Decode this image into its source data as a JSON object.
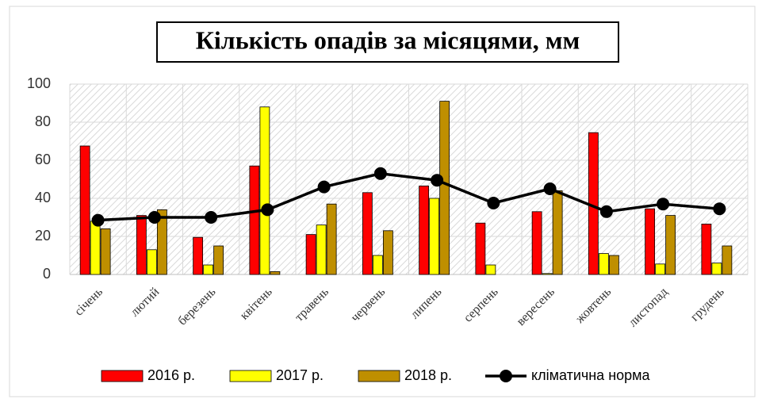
{
  "chart_data": {
    "type": "bar",
    "title": "Кількість опадів за місяцями, мм",
    "categories": [
      "січень",
      "лютий",
      "березень",
      "квітень",
      "травень",
      "червень",
      "липень",
      "серпень",
      "вересень",
      "жовтень",
      "листопад",
      "грудень"
    ],
    "series": [
      {
        "name": "2016 р.",
        "color": "#ff0000",
        "type": "bar",
        "values": [
          67.5,
          31,
          19.5,
          57,
          21,
          43,
          46.5,
          27,
          33,
          74.5,
          34.5,
          26.5
        ]
      },
      {
        "name": "2017 р.",
        "color": "#ffff00",
        "type": "bar",
        "values": [
          28,
          13,
          5,
          88,
          26,
          10,
          40,
          5,
          0.5,
          11,
          5.5,
          6
        ]
      },
      {
        "name": "2018 р.",
        "color": "#bf8f00",
        "type": "bar",
        "values": [
          24,
          34,
          15,
          1.5,
          37,
          23,
          91,
          null,
          44,
          10,
          31,
          15
        ]
      },
      {
        "name": "кліматична норма",
        "color": "#000000",
        "type": "line",
        "values": [
          28.5,
          30,
          30,
          34,
          46,
          53,
          49.5,
          37.5,
          45,
          33,
          37,
          34.5
        ]
      }
    ],
    "ylim": [
      0,
      100
    ],
    "yticks": [
      0,
      20,
      40,
      60,
      80,
      100
    ],
    "grid": true,
    "legend": "bottom"
  }
}
